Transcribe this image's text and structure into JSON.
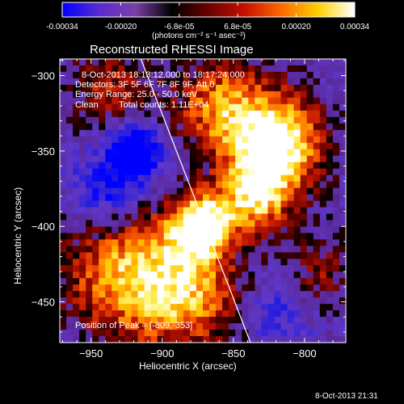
{
  "colorbar": {
    "ticks": [
      "-0.00034",
      "-0.00020",
      "-6.8e-05",
      "6.8e-05",
      "0.00020",
      "0.00034"
    ],
    "units": "(photons cm⁻² s⁻¹ asec⁻²)",
    "colors": [
      "#0000ff",
      "#5a2bd0",
      "#7a3fa8",
      "#000000",
      "#6a0000",
      "#c81000",
      "#ff6a00",
      "#ffd000",
      "#ffffff"
    ]
  },
  "chart_data": {
    "type": "heatmap",
    "title": "Reconstructed RHESSI Image",
    "xlabel": "Heliocentric X (arcsec)",
    "ylabel": "Heliocentric Y (arcsec)",
    "xlim": [
      -972,
      -771
    ],
    "ylim": [
      -477,
      -289
    ],
    "xticks": [
      -950,
      -900,
      -850,
      -800
    ],
    "yticks": [
      -300,
      -350,
      -400,
      -450
    ],
    "annotations": [
      "8-Oct-2013 18:13:12.000 to 18:17:24.000",
      "Detectors: 3F 5F 6F 7F 8F 9F, Att 0",
      "Energy Range: 25.0 - 50.0 keV",
      "Clean",
      "Total counts: 1.11E+04",
      "Position of Peak = [-809,-353]"
    ],
    "peak": [
      -809,
      -353
    ],
    "limb_line": [
      [
        -915,
        -289
      ],
      [
        -838,
        -477
      ]
    ],
    "sources": [
      {
        "x": -873,
        "y": -400,
        "sigma": 14,
        "amp": 1.0
      },
      {
        "x": -820,
        "y": -345,
        "sigma": 22,
        "amp": 0.95
      },
      {
        "x": -835,
        "y": -380,
        "sigma": 18,
        "amp": 0.65
      },
      {
        "x": -925,
        "y": -430,
        "sigma": 30,
        "amp": 0.65
      },
      {
        "x": -880,
        "y": -445,
        "sigma": 26,
        "amp": 0.55
      },
      {
        "x": -860,
        "y": -320,
        "sigma": 22,
        "amp": 0.55
      },
      {
        "x": -935,
        "y": -310,
        "sigma": 20,
        "amp": 0.35
      },
      {
        "x": -790,
        "y": -430,
        "sigma": 16,
        "amp": 0.3
      }
    ],
    "negative_sources": [
      {
        "x": -920,
        "y": -350,
        "sigma": 14,
        "amp": 0.7
      },
      {
        "x": -940,
        "y": -380,
        "sigma": 18,
        "amp": 0.4
      },
      {
        "x": -820,
        "y": -455,
        "sigma": 18,
        "amp": 0.25
      }
    ],
    "value_range": [
      -0.00034,
      0.00034
    ]
  },
  "footer": {
    "date": "8-Oct-2013 21:31"
  }
}
